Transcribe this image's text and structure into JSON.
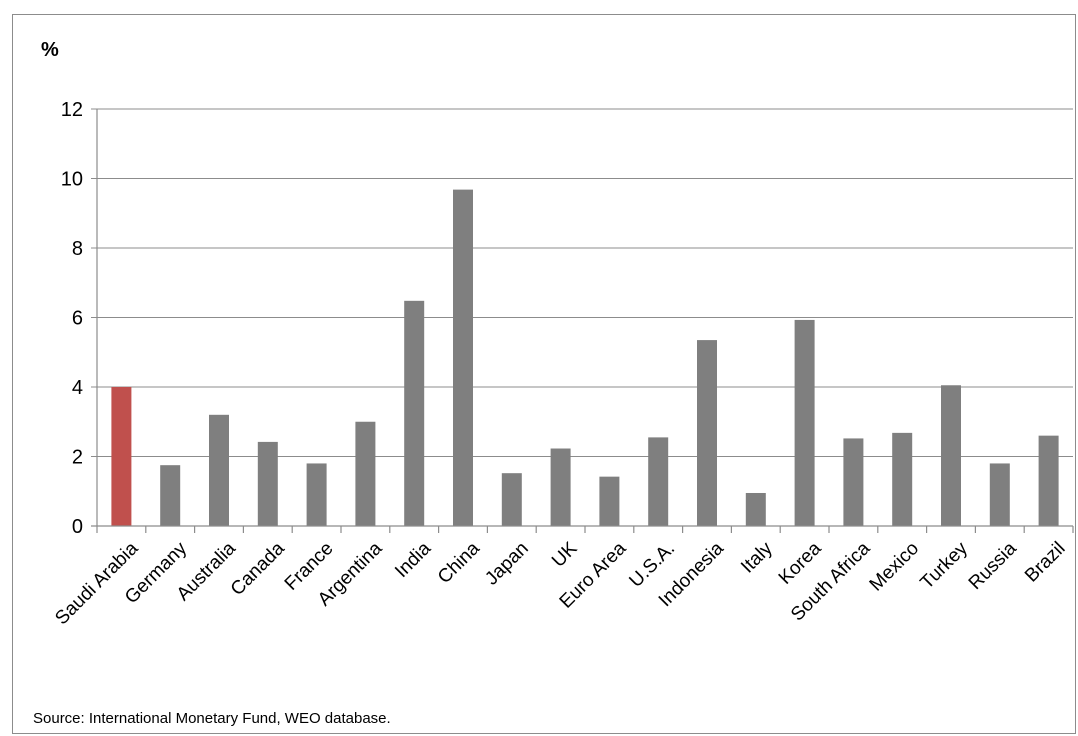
{
  "chart_data": {
    "type": "bar",
    "title": "",
    "unit_label": "%",
    "xlabel": "",
    "ylabel": "",
    "ylim": [
      0,
      12
    ],
    "yticks": [
      0,
      2,
      4,
      6,
      8,
      10,
      12
    ],
    "grid": true,
    "legend": "none",
    "categories": [
      "Saudi Arabia",
      "Germany",
      "Australia",
      "Canada",
      "France",
      "Argentina",
      "India",
      "China",
      "Japan",
      "UK",
      "Euro Area",
      "U.S.A.",
      "Indonesia",
      "Italy",
      "Korea",
      "South Africa",
      "Mexico",
      "Turkey",
      "Russia",
      "Brazil"
    ],
    "values": [
      4.0,
      1.75,
      3.2,
      2.42,
      1.8,
      3.0,
      6.48,
      9.68,
      1.52,
      2.23,
      1.42,
      2.55,
      5.35,
      0.95,
      5.93,
      2.52,
      2.68,
      4.05,
      1.8,
      2.6
    ],
    "colors": {
      "highlight": "#c0504d",
      "default": "#7f7f7f",
      "grid": "#8c8c8c",
      "axis": "#8c8c8c"
    },
    "highlight_index": 0,
    "source": "Source: International Monetary Fund, WEO database."
  }
}
